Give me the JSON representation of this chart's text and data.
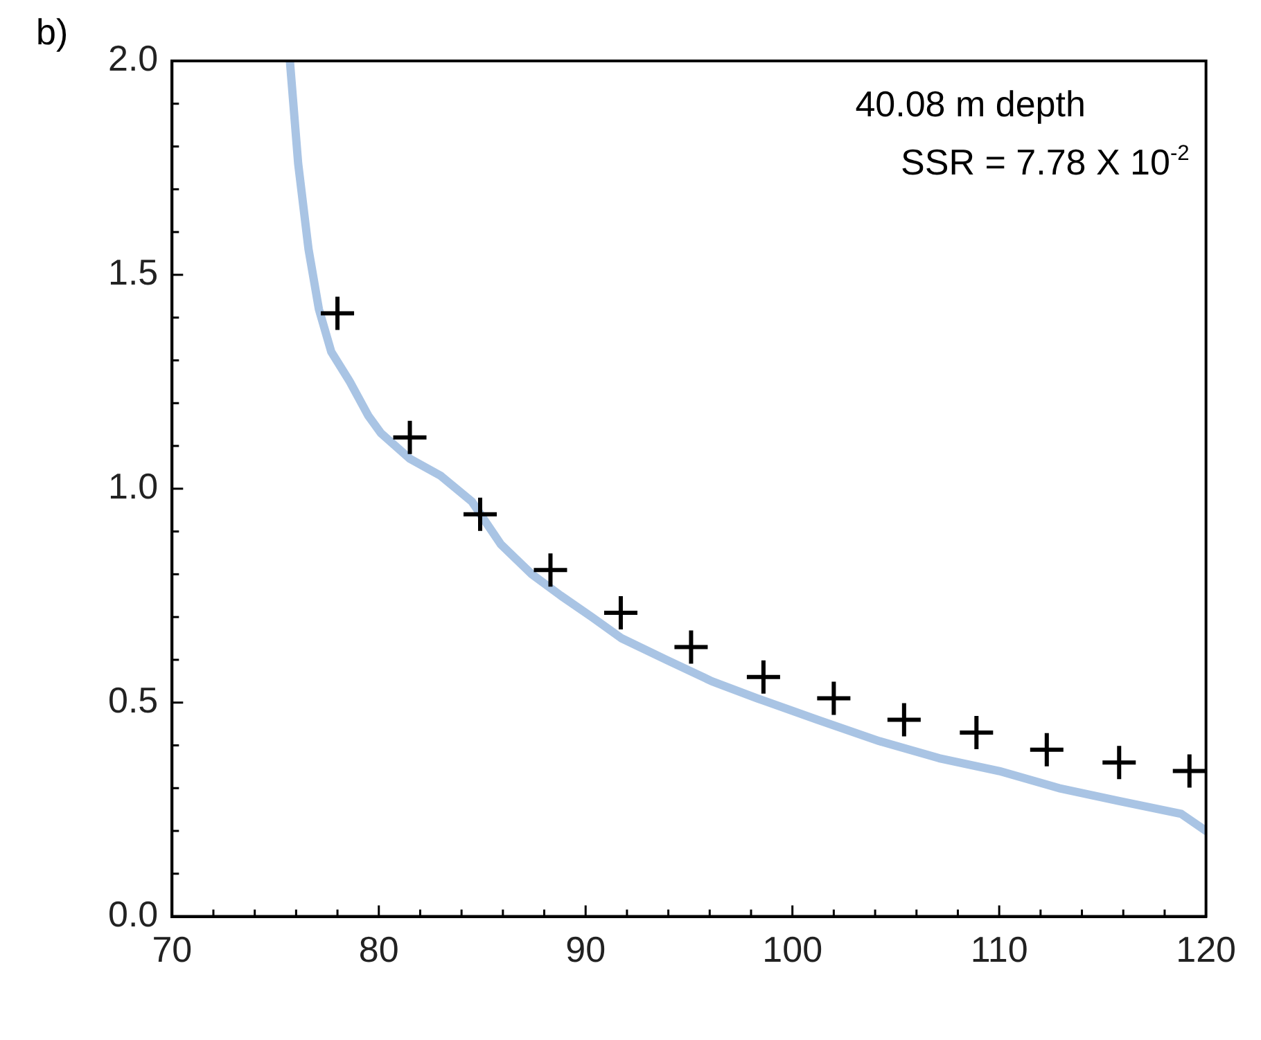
{
  "chart_data": {
    "type": "scatter",
    "annotations": [
      "b)",
      "40.08 m depth",
      "SSR = 7.78 X 10$^{-2}$"
    ],
    "xlim": [
      70,
      120
    ],
    "xticks": [
      70,
      80,
      90,
      100,
      110,
      120
    ],
    "ylim": [
      0,
      2
    ],
    "yticks": [
      {
        "value": 0,
        "label": "0.0"
      },
      {
        "value": 0.5,
        "label": "0.5"
      },
      {
        "value": 1,
        "label": "1.0"
      },
      {
        "value": 1.5,
        "label": "1.5"
      },
      {
        "value": 2,
        "label": "2.0"
      }
    ],
    "grid": false,
    "legend": false,
    "series": [
      {
        "type": "line",
        "color": "#a9c4e4",
        "marker": "none",
        "line_style": "solid",
        "x": [
          75.7,
          76.1,
          76.6,
          77.1,
          77.7,
          78.6,
          79.5,
          80.1,
          81.5,
          83.0,
          84.5,
          85.9,
          87.4,
          88.8,
          90.3,
          91.75,
          93.9,
          96.1,
          98.3,
          101.2,
          104.2,
          107.1,
          110.0,
          112.9,
          115.8,
          118.8,
          120
        ],
        "values": [
          2.0,
          1.76,
          1.56,
          1.42,
          1.32,
          1.25,
          1.17,
          1.13,
          1.07,
          1.03,
          0.97,
          0.87,
          0.8,
          0.75,
          0.7,
          0.65,
          0.6,
          0.55,
          0.51,
          0.46,
          0.41,
          0.37,
          0.34,
          0.3,
          0.27,
          0.24,
          0.2
        ]
      },
      {
        "type": "scatter",
        "color": "#000000",
        "marker": "cross",
        "x": [
          78.0,
          81.5,
          84.9,
          88.3,
          91.7,
          95.1,
          98.6,
          102.0,
          105.4,
          108.9,
          112.3,
          115.8,
          119.2
        ],
        "values": [
          1.41,
          1.12,
          0.94,
          0.81,
          0.71,
          0.63,
          0.56,
          0.51,
          0.46,
          0.43,
          0.39,
          0.36,
          0.34
        ]
      }
    ]
  }
}
